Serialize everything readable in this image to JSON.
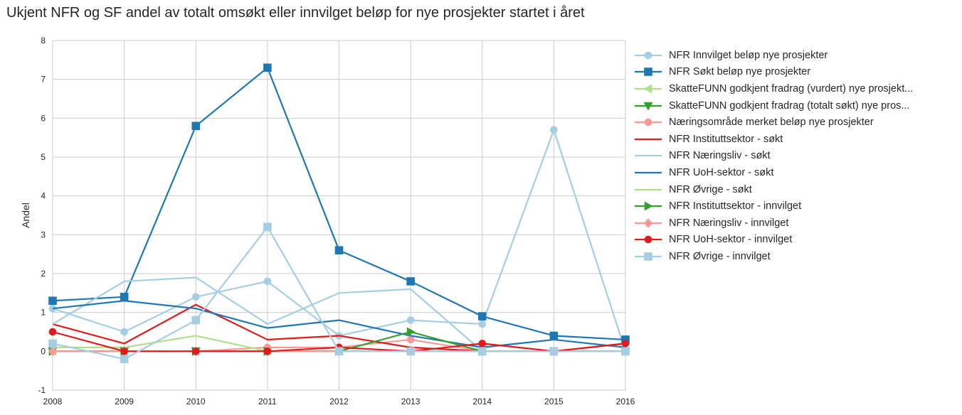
{
  "chart_data": {
    "type": "line",
    "title": "Ukjent NFR og SF andel av totalt omsøkt eller innvilget beløp for nye prosjekter startet i året",
    "xlabel": "",
    "ylabel": "Andel",
    "xlim": [
      2008,
      2016
    ],
    "ylim": [
      -1,
      8
    ],
    "x": [
      2008,
      2009,
      2010,
      2011,
      2012,
      2013,
      2014,
      2015,
      2016
    ],
    "xticks": [
      "2008",
      "2009",
      "2010",
      "2011",
      "2012",
      "2013",
      "2014",
      "2015",
      "2016"
    ],
    "yticks": [
      "-1",
      "0",
      "1",
      "2",
      "3",
      "4",
      "5",
      "6",
      "7",
      "8"
    ],
    "grid": true,
    "legend_position": "outside-right",
    "series": [
      {
        "name": "NFR Innvilget beløp nye prosjekter",
        "color": "#a6cee3",
        "marker": "circle",
        "values": [
          1.1,
          0.5,
          1.4,
          1.8,
          0.4,
          0.8,
          0.7,
          5.7,
          0.0
        ]
      },
      {
        "name": "NFR Søkt beløp nye prosjekter",
        "color": "#1f78b4",
        "marker": "square",
        "values": [
          1.3,
          1.4,
          5.8,
          7.3,
          2.6,
          1.8,
          0.9,
          0.4,
          0.3
        ]
      },
      {
        "name": "SkatteFUNN godkjent fradrag (vurdert) nye prosjekt...",
        "color": "#b2df8a",
        "marker": "triangle-left",
        "values": [
          0.0,
          0.0,
          0.0,
          0.0,
          0.0,
          0.0,
          0.0,
          0.0,
          0.0
        ]
      },
      {
        "name": "SkatteFUNN godkjent fradrag (totalt søkt) nye pros...",
        "color": "#33a02c",
        "marker": "triangle-down",
        "values": [
          0.0,
          0.0,
          0.0,
          0.0,
          0.0,
          0.0,
          0.0,
          0.0,
          0.0
        ]
      },
      {
        "name": "Næringsområde merket beløp nye prosjekter",
        "color": "#fb9a99",
        "marker": "circle",
        "values": [
          0.0,
          0.0,
          0.0,
          0.1,
          0.1,
          0.3,
          0.0,
          0.0,
          0.0
        ]
      },
      {
        "name": "NFR Instituttsektor - søkt",
        "color": "#e31a1c",
        "marker": "none",
        "values": [
          0.7,
          0.2,
          1.2,
          0.3,
          0.4,
          0.1,
          0.0,
          0.0,
          0.2
        ]
      },
      {
        "name": "NFR Næringsliv - søkt",
        "color": "#a6cee3",
        "marker": "none",
        "values": [
          0.7,
          1.8,
          1.9,
          0.7,
          1.5,
          1.6,
          0.0,
          0.0,
          0.0
        ]
      },
      {
        "name": "NFR UoH-sektor - søkt",
        "color": "#1f78b4",
        "marker": "none",
        "values": [
          1.1,
          1.3,
          1.1,
          0.6,
          0.8,
          0.4,
          0.1,
          0.3,
          0.1
        ]
      },
      {
        "name": "NFR Øvrige - søkt",
        "color": "#b2df8a",
        "marker": "none",
        "values": [
          0.1,
          0.1,
          0.4,
          0.0,
          0.0,
          0.0,
          0.0,
          0.0,
          0.0
        ]
      },
      {
        "name": "NFR Instituttsektor - innvilget",
        "color": "#33a02c",
        "marker": "triangle-right",
        "values": [
          0.0,
          0.0,
          0.0,
          0.0,
          0.0,
          0.5,
          0.0,
          0.0,
          0.0
        ]
      },
      {
        "name": "NFR Næringsliv - innvilget",
        "color": "#fb9a99",
        "marker": "diamond",
        "values": [
          0.0,
          0.0,
          0.0,
          0.0,
          0.0,
          0.0,
          0.0,
          0.0,
          0.0
        ]
      },
      {
        "name": "NFR UoH-sektor - innvilget",
        "color": "#e31a1c",
        "marker": "circle",
        "values": [
          0.5,
          0.0,
          0.0,
          0.0,
          0.1,
          0.0,
          0.2,
          0.0,
          0.2
        ]
      },
      {
        "name": "NFR Øvrige - innvilget",
        "color": "#a6cee3",
        "marker": "square",
        "values": [
          0.2,
          -0.2,
          0.8,
          3.2,
          0.0,
          0.0,
          0.0,
          0.0,
          0.0
        ]
      }
    ]
  }
}
